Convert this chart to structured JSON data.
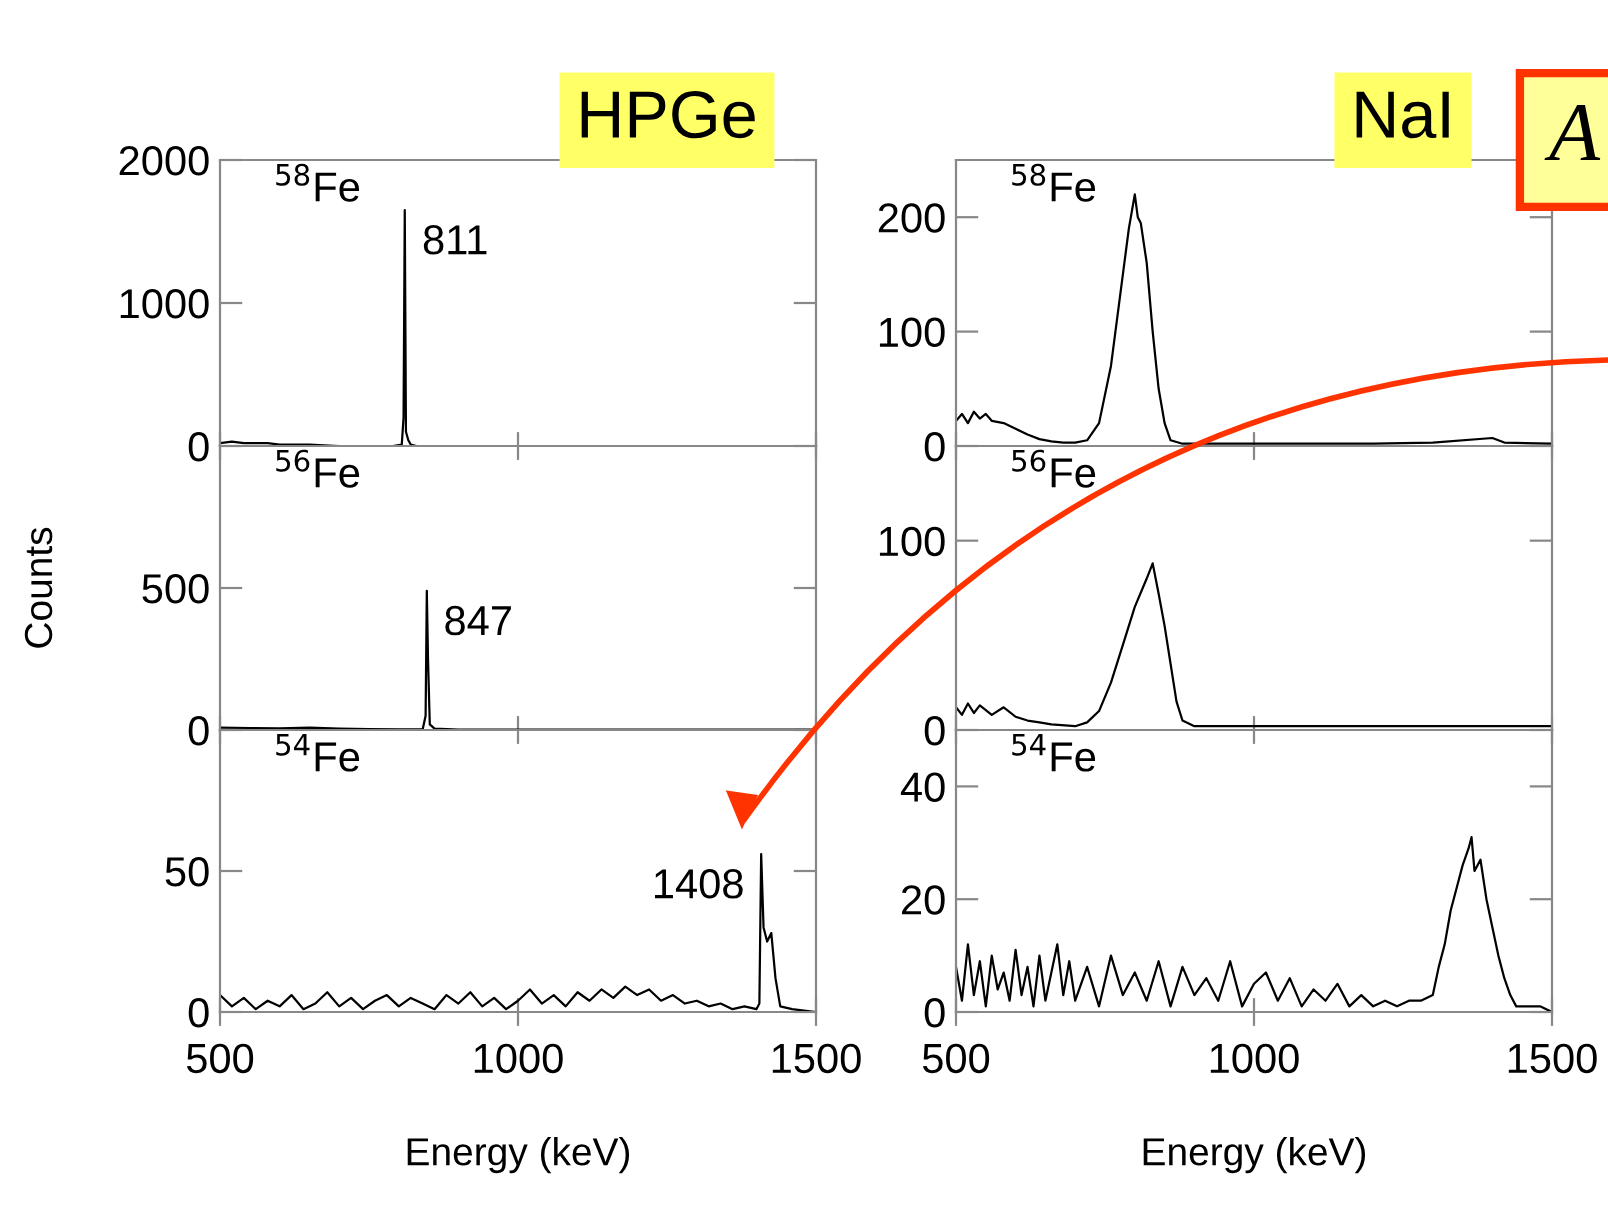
{
  "chart_data": [
    {
      "type": "line",
      "title": "HPGe",
      "annotations": [
        "$^{58}$Fe",
        {
          "text": "811",
          "x": 811,
          "y": 1650
        }
      ],
      "xlim": [
        500,
        1500
      ],
      "xticks": [
        500,
        1000,
        1500
      ],
      "ylim": [
        0,
        2000
      ],
      "yticks": [
        0,
        1000,
        2000
      ],
      "tick_labels": "y",
      "x": [
        500,
        520,
        540,
        560,
        580,
        600,
        650,
        700,
        750,
        790,
        805,
        808,
        810,
        812,
        816,
        820,
        830,
        900,
        1000,
        1100,
        1200,
        1300,
        1400,
        1500
      ],
      "series": [
        {
          "color": "#000000",
          "values": [
            20,
            30,
            20,
            20,
            20,
            10,
            10,
            0,
            0,
            0,
            10,
            200,
            1650,
            100,
            40,
            10,
            0,
            0,
            0,
            0,
            0,
            0,
            0,
            0
          ]
        }
      ]
    },
    {
      "type": "line",
      "title": "NaI",
      "annotations": [
        "$^{58}$Fe",
        "A"
      ],
      "xlim": [
        500,
        1500
      ],
      "xticks": [
        500,
        1000,
        1500
      ],
      "ylim": [
        0,
        250
      ],
      "yticks": [
        0,
        100,
        200
      ],
      "tick_labels": "y",
      "x": [
        500,
        510,
        520,
        530,
        540,
        550,
        560,
        580,
        600,
        620,
        640,
        660,
        680,
        700,
        720,
        740,
        760,
        780,
        790,
        800,
        805,
        810,
        820,
        830,
        840,
        850,
        860,
        880,
        1000,
        1200,
        1300,
        1400,
        1420,
        1500
      ],
      "series": [
        {
          "color": "#000000",
          "values": [
            22,
            28,
            20,
            30,
            24,
            28,
            22,
            20,
            15,
            10,
            6,
            4,
            3,
            3,
            5,
            20,
            70,
            150,
            190,
            220,
            200,
            195,
            160,
            100,
            50,
            20,
            5,
            2,
            2,
            2,
            3,
            7,
            3,
            2
          ]
        }
      ]
    },
    {
      "type": "line",
      "ylabel": "Counts",
      "annotations": [
        "$^{56}$Fe",
        {
          "text": "847",
          "x": 847,
          "y": 490
        }
      ],
      "xlim": [
        500,
        1500
      ],
      "xticks": [
        500,
        1000,
        1500
      ],
      "ylim": [
        0,
        1000
      ],
      "yticks": [
        0,
        500
      ],
      "tick_labels": "y",
      "x": [
        500,
        550,
        600,
        650,
        700,
        750,
        800,
        840,
        845,
        847,
        849,
        852,
        860,
        900,
        1000,
        1200,
        1500
      ],
      "series": [
        {
          "color": "#000000",
          "values": [
            8,
            7,
            6,
            8,
            5,
            3,
            2,
            2,
            50,
            490,
            250,
            20,
            5,
            1,
            1,
            1,
            1
          ]
        }
      ]
    },
    {
      "type": "line",
      "annotations": [
        "$^{56}$Fe"
      ],
      "xlim": [
        500,
        1500
      ],
      "xticks": [
        500,
        1000,
        1500
      ],
      "ylim": [
        0,
        150
      ],
      "yticks": [
        0,
        100
      ],
      "tick_labels": "y",
      "x": [
        500,
        510,
        520,
        530,
        540,
        560,
        580,
        600,
        620,
        640,
        660,
        700,
        720,
        740,
        760,
        780,
        800,
        820,
        830,
        840,
        850,
        860,
        870,
        880,
        900,
        1000,
        1500
      ],
      "series": [
        {
          "color": "#000000",
          "values": [
            12,
            8,
            14,
            9,
            13,
            8,
            12,
            7,
            5,
            4,
            3,
            2,
            4,
            10,
            25,
            45,
            65,
            80,
            88,
            72,
            55,
            35,
            15,
            5,
            2,
            2,
            2
          ]
        }
      ]
    },
    {
      "type": "line",
      "xlabel": "Energy (keV)",
      "annotations": [
        "$^{54}$Fe",
        {
          "text": "1408",
          "x": 1408,
          "y": 56
        }
      ],
      "xlim": [
        500,
        1500
      ],
      "xticks": [
        500,
        1000,
        1500
      ],
      "ylim": [
        0,
        100
      ],
      "yticks": [
        0,
        50
      ],
      "x": [
        500,
        520,
        540,
        560,
        580,
        600,
        620,
        640,
        660,
        680,
        700,
        720,
        740,
        760,
        780,
        800,
        820,
        840,
        860,
        880,
        900,
        920,
        940,
        960,
        980,
        1000,
        1020,
        1040,
        1060,
        1080,
        1100,
        1120,
        1140,
        1160,
        1180,
        1200,
        1220,
        1240,
        1260,
        1280,
        1300,
        1320,
        1340,
        1360,
        1380,
        1400,
        1405,
        1408,
        1412,
        1418,
        1425,
        1432,
        1440,
        1460,
        1500
      ],
      "series": [
        {
          "color": "#000000",
          "values": [
            6,
            2,
            5,
            1,
            4,
            2,
            6,
            1,
            3,
            7,
            2,
            5,
            1,
            4,
            6,
            2,
            5,
            3,
            1,
            6,
            3,
            7,
            2,
            5,
            1,
            4,
            8,
            3,
            6,
            2,
            7,
            4,
            8,
            5,
            9,
            6,
            8,
            4,
            6,
            3,
            4,
            2,
            3,
            1,
            2,
            1,
            3,
            56,
            30,
            25,
            28,
            12,
            2,
            1,
            0
          ]
        }
      ]
    },
    {
      "type": "line",
      "xlabel": "Energy (keV)",
      "annotations": [
        "$^{54}$Fe"
      ],
      "xlim": [
        500,
        1500
      ],
      "xticks": [
        500,
        1000,
        1500
      ],
      "ylim": [
        0,
        50
      ],
      "yticks": [
        0,
        20,
        40
      ],
      "x": [
        500,
        510,
        520,
        530,
        540,
        550,
        560,
        570,
        580,
        590,
        600,
        610,
        620,
        630,
        640,
        650,
        660,
        670,
        680,
        690,
        700,
        720,
        740,
        760,
        780,
        800,
        820,
        840,
        860,
        880,
        900,
        920,
        940,
        960,
        980,
        1000,
        1020,
        1040,
        1060,
        1080,
        1100,
        1120,
        1140,
        1160,
        1180,
        1200,
        1220,
        1240,
        1260,
        1280,
        1300,
        1310,
        1320,
        1330,
        1340,
        1350,
        1360,
        1365,
        1370,
        1380,
        1390,
        1400,
        1410,
        1420,
        1430,
        1440,
        1460,
        1480,
        1500
      ],
      "series": [
        {
          "color": "#000000",
          "values": [
            8,
            2,
            12,
            3,
            9,
            1,
            10,
            4,
            7,
            2,
            11,
            3,
            8,
            1,
            10,
            2,
            7,
            12,
            3,
            9,
            2,
            8,
            1,
            10,
            3,
            7,
            2,
            9,
            1,
            8,
            3,
            6,
            2,
            9,
            1,
            5,
            7,
            2,
            6,
            1,
            4,
            2,
            5,
            1,
            3,
            1,
            2,
            1,
            2,
            2,
            3,
            8,
            12,
            18,
            22,
            26,
            29,
            31,
            25,
            27,
            20,
            15,
            10,
            6,
            3,
            1,
            1,
            1,
            0
          ]
        }
      ]
    }
  ]
}
